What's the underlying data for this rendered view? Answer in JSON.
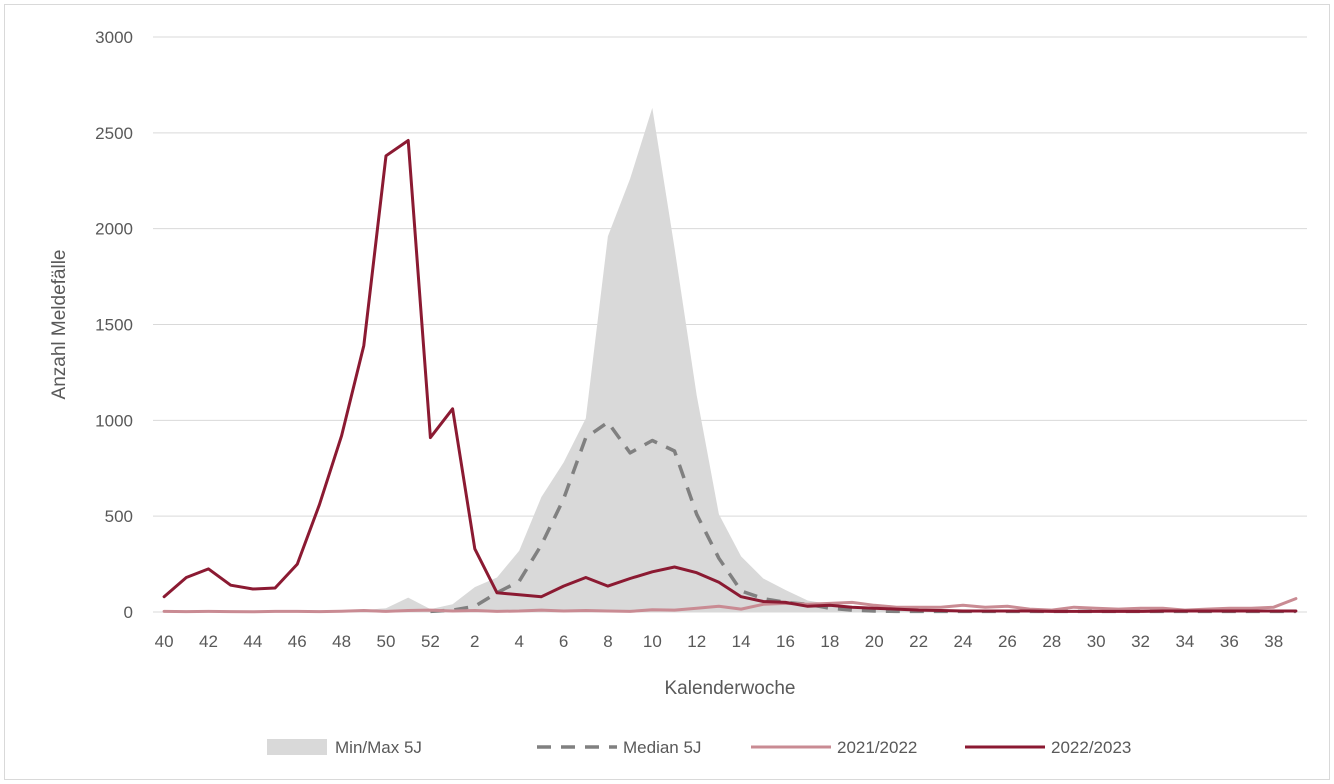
{
  "chart_data": {
    "type": "line",
    "xlabel": "Kalenderwoche",
    "ylabel": "Anzahl Meldefälle",
    "ylim": [
      0,
      3000
    ],
    "yticks": [
      "0",
      "500",
      "1000",
      "1500",
      "2000",
      "2500",
      "3000"
    ],
    "x": [
      "40",
      "41",
      "42",
      "43",
      "44",
      "45",
      "46",
      "47",
      "48",
      "49",
      "50",
      "51",
      "52",
      "1",
      "2",
      "3",
      "4",
      "5",
      "6",
      "7",
      "8",
      "9",
      "10",
      "11",
      "12",
      "13",
      "14",
      "15",
      "16",
      "17",
      "18",
      "19",
      "20",
      "21",
      "22",
      "23",
      "24",
      "25",
      "26",
      "27",
      "28",
      "29",
      "30",
      "31",
      "32",
      "33",
      "34",
      "35",
      "36",
      "37",
      "38",
      "39"
    ],
    "xtick_labels": [
      "40",
      "42",
      "44",
      "46",
      "48",
      "50",
      "52",
      "2",
      "4",
      "6",
      "8",
      "10",
      "12",
      "14",
      "16",
      "18",
      "20",
      "22",
      "24",
      "26",
      "28",
      "30",
      "32",
      "34",
      "36",
      "38"
    ],
    "grid": "horizontal",
    "legend": "bottom",
    "series": [
      {
        "name": "Min/Max 5J",
        "kind": "area",
        "color": "#d9d9d9",
        "min": [
          0,
          0,
          0,
          0,
          0,
          0,
          0,
          0,
          0,
          0,
          0,
          0,
          0,
          0,
          0,
          0,
          0,
          0,
          0,
          0,
          0,
          0,
          0,
          0,
          0,
          0,
          0,
          0,
          0,
          0,
          0,
          0,
          0,
          0,
          0,
          0,
          0,
          0,
          0,
          0,
          0,
          0,
          0,
          0,
          0,
          0,
          0,
          0,
          0,
          0,
          0,
          0
        ],
        "max": [
          8,
          4,
          6,
          3,
          3,
          4,
          3,
          4,
          6,
          10,
          20,
          75,
          15,
          40,
          130,
          180,
          320,
          600,
          780,
          1010,
          1960,
          2260,
          2630,
          1900,
          1130,
          510,
          290,
          175,
          115,
          60,
          40,
          30,
          20,
          15,
          10,
          10,
          10,
          10,
          10,
          10,
          10,
          10,
          10,
          10,
          10,
          10,
          10,
          10,
          10,
          10,
          10,
          10
        ]
      },
      {
        "name": "Median 5J",
        "kind": "line",
        "dash": true,
        "color": "#808080",
        "values": [
          null,
          null,
          null,
          null,
          null,
          null,
          null,
          null,
          null,
          null,
          null,
          null,
          3,
          10,
          30,
          100,
          160,
          350,
          590,
          910,
          990,
          830,
          895,
          840,
          510,
          280,
          110,
          70,
          50,
          40,
          20,
          10,
          5,
          3,
          3,
          3,
          3,
          3,
          3,
          3,
          3,
          3,
          3,
          3,
          3,
          3,
          3,
          3,
          3,
          3,
          3,
          3
        ]
      },
      {
        "name": "2021/2022",
        "kind": "line",
        "color": "#c98b93",
        "values": [
          3,
          2,
          3,
          2,
          1,
          3,
          3,
          2,
          4,
          8,
          3,
          8,
          10,
          5,
          8,
          3,
          5,
          10,
          5,
          8,
          5,
          3,
          12,
          10,
          20,
          30,
          15,
          40,
          45,
          40,
          45,
          50,
          35,
          25,
          25,
          25,
          35,
          25,
          30,
          15,
          10,
          25,
          20,
          15,
          20,
          20,
          10,
          15,
          20,
          20,
          25,
          70
        ]
      },
      {
        "name": "2022/2023",
        "kind": "line",
        "color": "#8b1a32",
        "values": [
          80,
          180,
          225,
          140,
          120,
          125,
          250,
          560,
          920,
          1390,
          2380,
          2460,
          910,
          1060,
          330,
          100,
          90,
          80,
          135,
          180,
          135,
          175,
          210,
          235,
          205,
          155,
          80,
          55,
          50,
          30,
          35,
          25,
          20,
          15,
          10,
          8,
          5,
          5,
          5,
          5,
          3,
          3,
          3,
          3,
          3,
          5,
          5,
          5,
          5,
          5,
          5,
          5
        ]
      }
    ]
  }
}
